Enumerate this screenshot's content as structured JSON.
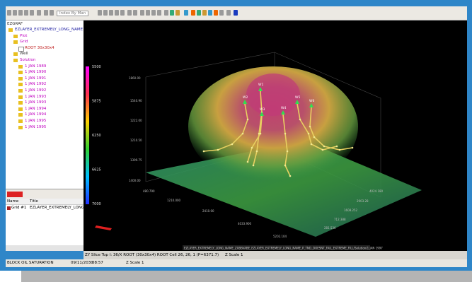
{
  "toolbar": {
    "dropdown": "Index By Man"
  },
  "tree": {
    "root": "EZGRAF",
    "items": [
      "EZLAYER_EXTREMELY_LONG_NAME",
      "Plot",
      "Grid",
      "ROOT 30x30x4",
      "Well",
      "Solution",
      "1 JAN 1989",
      "1 JAN 1990",
      "1 JAN 1991",
      "1 JAN 1992",
      "1 JAN 1992",
      "1 JAN 1993",
      "1 JAN 1993",
      "1 JAN 1994",
      "1 JAN 1994",
      "1 JAN 1995",
      "1 JAN 1995"
    ]
  },
  "list": {
    "headers": [
      "Name",
      "Title"
    ],
    "rows": [
      [
        "Grid #1",
        "EZLAYER_EXTREMELY_LONG..."
      ]
    ]
  },
  "colorbar": {
    "labels": [
      "5500",
      "5875",
      "6250",
      "6625",
      "7000"
    ]
  },
  "view": {
    "axis_labels": [
      "1860.00",
      "1540.90",
      "1222.00",
      "1210.50",
      "1399.75",
      "1400.00",
      "480.790",
      "1210.000",
      "2410.00",
      "4033.900",
      "5202.104",
      "281.536",
      "712.388",
      "1608.252",
      "2903.28",
      "4024.180"
    ],
    "wells": [
      "W1",
      "W2",
      "W3",
      "W4",
      "W5",
      "W6"
    ],
    "caption": "EZLAYER_EXTREMELY_LONG_NAME_ZXBBVABE_EZLAYER_EXTREMELY_LONG_NAME_P_TND_DOESNT_FAIL_EXTREME_FILL/Solution/1 JAN 1997"
  },
  "status": {
    "slice": "ZY Slice Top I: 36/X  ROOT (30x30x4)  ROOT Cell 26, 26, 1  (P=6371.7)",
    "zscale": "Z Scale 1",
    "property": "BLOCK OIL SATURATION",
    "date": "09/11/2030",
    "time": "08:57",
    "zscale2": "Z Scale 1"
  }
}
